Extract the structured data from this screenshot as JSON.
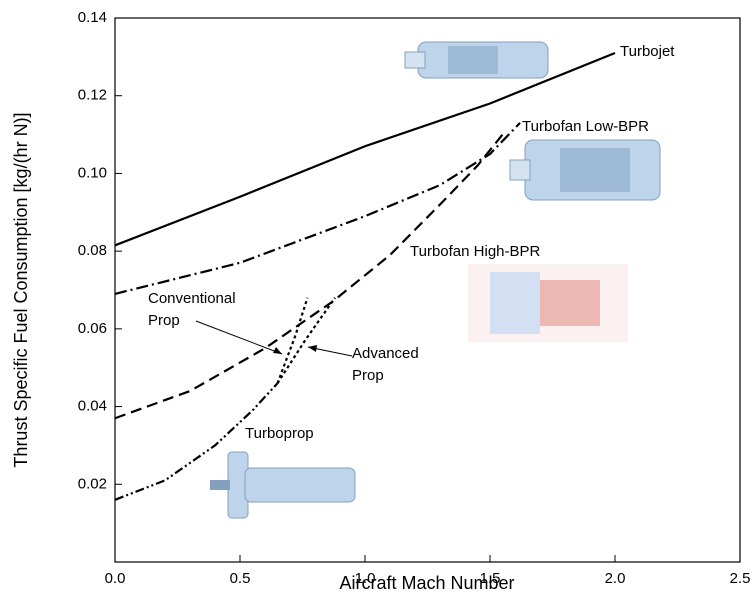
{
  "chart_data": {
    "type": "line",
    "x_label": "Aircraft Mach Number",
    "y_label": "Thrust Specific Fuel Consumption [kg/(hr N)]",
    "xlim": [
      0,
      2.5
    ],
    "ylim": [
      0,
      0.14
    ],
    "xticks": [
      {
        "value": 0,
        "label": "0.0"
      },
      0.5,
      {
        "value": 1,
        "label": "1.0"
      },
      1.5,
      {
        "value": 2,
        "label": "2.0"
      },
      2.5
    ],
    "yticks": [
      0.02,
      0.04,
      0.06,
      0.08,
      {
        "value": 0.1,
        "label": "0.10"
      },
      0.12,
      0.14
    ],
    "series": [
      {
        "name": "Turbojet",
        "color": "#000000",
        "dash": "solid",
        "x": [
          0,
          0.5,
          1.0,
          1.5,
          2.0
        ],
        "values": [
          0.0815,
          0.094,
          0.107,
          0.118,
          0.131
        ]
      },
      {
        "name": "Turbofan Low-BPR",
        "color": "#000000",
        "dash": "dash-dot",
        "x": [
          0,
          0.5,
          1.0,
          1.3,
          1.5,
          1.62
        ],
        "values": [
          0.069,
          0.077,
          0.089,
          0.097,
          0.105,
          0.113
        ]
      },
      {
        "name": "Turbofan High-BPR",
        "color": "#000000",
        "dash": "dashed",
        "x": [
          0,
          0.3,
          0.6,
          0.87,
          1.1,
          1.3,
          1.45,
          1.55
        ],
        "values": [
          0.037,
          0.044,
          0.055,
          0.067,
          0.079,
          0.092,
          0.102,
          0.11
        ]
      },
      {
        "name": "Turboprop",
        "color": "#000000",
        "dash": "dash-dot-dot",
        "x": [
          0,
          0.2,
          0.4,
          0.55,
          0.65
        ],
        "values": [
          0.016,
          0.021,
          0.03,
          0.039,
          0.046
        ]
      },
      {
        "name": "Conventional Prop",
        "color": "#000000",
        "dash": "dotted",
        "x": [
          0.65,
          0.72,
          0.77
        ],
        "values": [
          0.046,
          0.058,
          0.068
        ]
      },
      {
        "name": "Advanced Prop",
        "color": "#000000",
        "dash": "dotted",
        "x": [
          0.65,
          0.76,
          0.88
        ],
        "values": [
          0.046,
          0.057,
          0.068
        ]
      }
    ]
  }
}
